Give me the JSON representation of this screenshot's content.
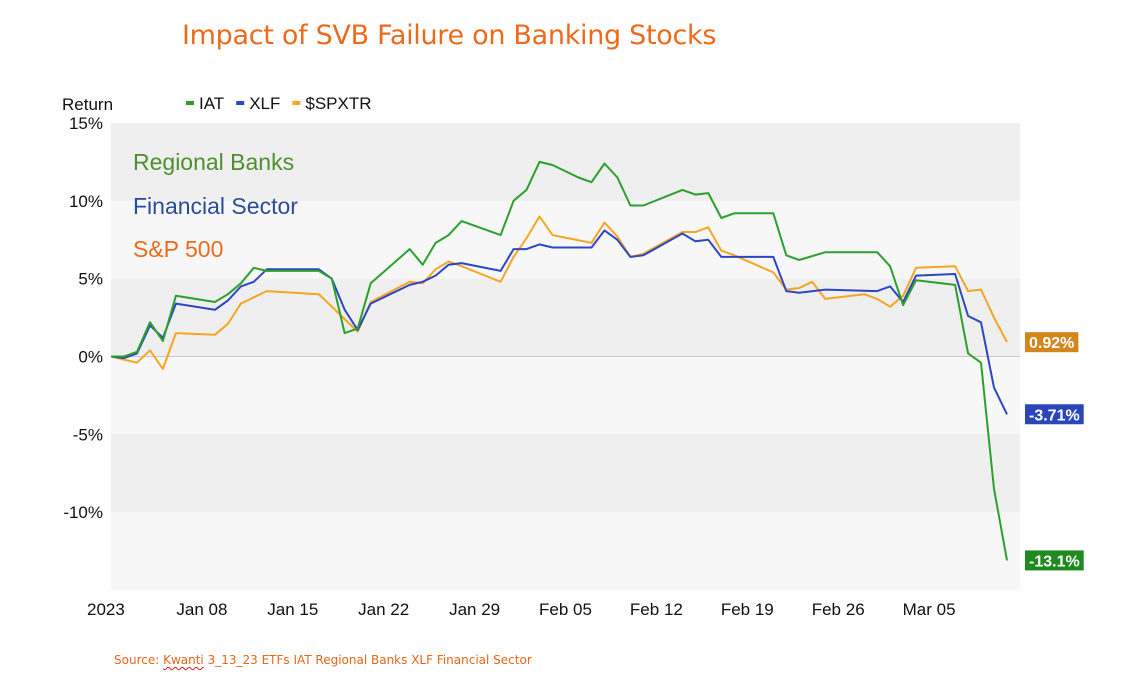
{
  "title": "Impact of SVB Failure on Banking Stocks",
  "source": {
    "prefix": "Source: ",
    "link": "Kwanti",
    "rest": " 3_13_23 ETFs IAT Regional Banks XLF Financial Sector"
  },
  "chart_data": {
    "type": "line",
    "ylabel": "Return",
    "ylim": [
      -15,
      15
    ],
    "yticks": [
      15,
      10,
      5,
      0,
      -5,
      -10
    ],
    "ytick_labels": [
      "15%",
      "10%",
      "5%",
      "0%",
      "-5%",
      "-10%"
    ],
    "xlim": [
      "2023-01-01",
      "2023-03-12"
    ],
    "xtick_labels": [
      {
        "date": "2023-01-01",
        "label": "2023"
      },
      {
        "date": "2023-01-08",
        "label": "Jan 08"
      },
      {
        "date": "2023-01-15",
        "label": "Jan 15"
      },
      {
        "date": "2023-01-22",
        "label": "Jan 22"
      },
      {
        "date": "2023-01-29",
        "label": "Jan 29"
      },
      {
        "date": "2023-02-05",
        "label": "Feb 05"
      },
      {
        "date": "2023-02-12",
        "label": "Feb 12"
      },
      {
        "date": "2023-02-19",
        "label": "Feb 19"
      },
      {
        "date": "2023-02-26",
        "label": "Feb 26"
      },
      {
        "date": "2023-03-05",
        "label": "Mar 05"
      }
    ],
    "legend_position": "top-left",
    "legend": [
      "IAT",
      "XLF",
      "$SPXTR"
    ],
    "annotations": [
      {
        "text": "Regional Banks",
        "color": "#4f8f2f"
      },
      {
        "text": "Financial Sector",
        "color": "#2a4a9a"
      },
      {
        "text": "S&P 500",
        "color": "#ec6a1c"
      }
    ],
    "series": [
      {
        "name": "IAT",
        "color": "#2ca02c",
        "end_label": "-13.1%",
        "end_label_color": "#1f8a1f",
        "points": [
          [
            "2023-01-01",
            0.0
          ],
          [
            "2023-01-02",
            0.0
          ],
          [
            "2023-01-03",
            0.3
          ],
          [
            "2023-01-04",
            2.2
          ],
          [
            "2023-01-05",
            1.0
          ],
          [
            "2023-01-06",
            3.9
          ],
          [
            "2023-01-09",
            3.5
          ],
          [
            "2023-01-10",
            4.0
          ],
          [
            "2023-01-11",
            4.7
          ],
          [
            "2023-01-12",
            5.7
          ],
          [
            "2023-01-13",
            5.5
          ],
          [
            "2023-01-17",
            5.5
          ],
          [
            "2023-01-18",
            5.0
          ],
          [
            "2023-01-19",
            1.5
          ],
          [
            "2023-01-20",
            1.8
          ],
          [
            "2023-01-21",
            4.7
          ],
          [
            "2023-01-24",
            6.9
          ],
          [
            "2023-01-25",
            5.9
          ],
          [
            "2023-01-26",
            7.3
          ],
          [
            "2023-01-27",
            7.8
          ],
          [
            "2023-01-28",
            8.7
          ],
          [
            "2023-01-31",
            7.8
          ],
          [
            "2023-02-01",
            10.0
          ],
          [
            "2023-02-02",
            10.7
          ],
          [
            "2023-02-03",
            12.5
          ],
          [
            "2023-02-04",
            12.3
          ],
          [
            "2023-02-06",
            11.5
          ],
          [
            "2023-02-07",
            11.2
          ],
          [
            "2023-02-08",
            12.4
          ],
          [
            "2023-02-09",
            11.5
          ],
          [
            "2023-02-10",
            9.7
          ],
          [
            "2023-02-11",
            9.7
          ],
          [
            "2023-02-14",
            10.7
          ],
          [
            "2023-02-15",
            10.4
          ],
          [
            "2023-02-16",
            10.5
          ],
          [
            "2023-02-17",
            8.9
          ],
          [
            "2023-02-18",
            9.2
          ],
          [
            "2023-02-21",
            9.2
          ],
          [
            "2023-02-22",
            6.5
          ],
          [
            "2023-02-23",
            6.2
          ],
          [
            "2023-02-25",
            6.7
          ],
          [
            "2023-02-27",
            6.7
          ],
          [
            "2023-03-01",
            6.7
          ],
          [
            "2023-03-02",
            5.8
          ],
          [
            "2023-03-03",
            3.3
          ],
          [
            "2023-03-04",
            4.9
          ],
          [
            "2023-03-07",
            4.6
          ],
          [
            "2023-03-08",
            0.2
          ],
          [
            "2023-03-09",
            -0.4
          ],
          [
            "2023-03-10",
            -8.5
          ],
          [
            "2023-03-11",
            -13.1
          ]
        ]
      },
      {
        "name": "XLF",
        "color": "#2d46c4",
        "end_label": "-3.71%",
        "end_label_color": "#2a46b8",
        "points": [
          [
            "2023-01-01",
            0.0
          ],
          [
            "2023-01-02",
            -0.1
          ],
          [
            "2023-01-03",
            0.2
          ],
          [
            "2023-01-04",
            2.0
          ],
          [
            "2023-01-05",
            1.2
          ],
          [
            "2023-01-06",
            3.4
          ],
          [
            "2023-01-09",
            3.0
          ],
          [
            "2023-01-10",
            3.6
          ],
          [
            "2023-01-11",
            4.5
          ],
          [
            "2023-01-12",
            4.8
          ],
          [
            "2023-01-13",
            5.6
          ],
          [
            "2023-01-17",
            5.6
          ],
          [
            "2023-01-18",
            5.0
          ],
          [
            "2023-01-19",
            3.0
          ],
          [
            "2023-01-20",
            1.7
          ],
          [
            "2023-01-21",
            3.4
          ],
          [
            "2023-01-24",
            4.6
          ],
          [
            "2023-01-25",
            4.8
          ],
          [
            "2023-01-26",
            5.2
          ],
          [
            "2023-01-27",
            5.9
          ],
          [
            "2023-01-28",
            6.0
          ],
          [
            "2023-01-31",
            5.5
          ],
          [
            "2023-02-01",
            6.9
          ],
          [
            "2023-02-02",
            6.9
          ],
          [
            "2023-02-03",
            7.2
          ],
          [
            "2023-02-04",
            7.0
          ],
          [
            "2023-02-07",
            7.0
          ],
          [
            "2023-02-08",
            8.1
          ],
          [
            "2023-02-09",
            7.5
          ],
          [
            "2023-02-10",
            6.4
          ],
          [
            "2023-02-11",
            6.5
          ],
          [
            "2023-02-14",
            7.9
          ],
          [
            "2023-02-15",
            7.4
          ],
          [
            "2023-02-16",
            7.5
          ],
          [
            "2023-02-17",
            6.4
          ],
          [
            "2023-02-18",
            6.4
          ],
          [
            "2023-02-21",
            6.4
          ],
          [
            "2023-02-22",
            4.2
          ],
          [
            "2023-02-23",
            4.1
          ],
          [
            "2023-02-25",
            4.3
          ],
          [
            "2023-03-01",
            4.2
          ],
          [
            "2023-03-02",
            4.5
          ],
          [
            "2023-03-03",
            3.5
          ],
          [
            "2023-03-04",
            5.2
          ],
          [
            "2023-03-07",
            5.3
          ],
          [
            "2023-03-08",
            2.6
          ],
          [
            "2023-03-09",
            2.2
          ],
          [
            "2023-03-10",
            -2.0
          ],
          [
            "2023-03-11",
            -3.71
          ]
        ]
      },
      {
        "name": "$SPXTR",
        "color": "#f5a623",
        "end_label": "0.92%",
        "end_label_color": "#d3861c",
        "points": [
          [
            "2023-01-01",
            0.0
          ],
          [
            "2023-01-03",
            -0.4
          ],
          [
            "2023-01-04",
            0.4
          ],
          [
            "2023-01-05",
            -0.8
          ],
          [
            "2023-01-06",
            1.5
          ],
          [
            "2023-01-09",
            1.4
          ],
          [
            "2023-01-10",
            2.1
          ],
          [
            "2023-01-11",
            3.4
          ],
          [
            "2023-01-13",
            4.2
          ],
          [
            "2023-01-17",
            4.0
          ],
          [
            "2023-01-18",
            3.2
          ],
          [
            "2023-01-19",
            2.4
          ],
          [
            "2023-01-20",
            1.6
          ],
          [
            "2023-01-21",
            3.5
          ],
          [
            "2023-01-24",
            4.8
          ],
          [
            "2023-01-25",
            4.7
          ],
          [
            "2023-01-26",
            5.6
          ],
          [
            "2023-01-27",
            6.1
          ],
          [
            "2023-01-28",
            5.8
          ],
          [
            "2023-01-31",
            4.8
          ],
          [
            "2023-02-01",
            6.4
          ],
          [
            "2023-02-02",
            7.6
          ],
          [
            "2023-02-03",
            9.0
          ],
          [
            "2023-02-04",
            7.8
          ],
          [
            "2023-02-07",
            7.3
          ],
          [
            "2023-02-08",
            8.6
          ],
          [
            "2023-02-09",
            7.7
          ],
          [
            "2023-02-10",
            6.4
          ],
          [
            "2023-02-11",
            6.6
          ],
          [
            "2023-02-14",
            8.0
          ],
          [
            "2023-02-15",
            8.0
          ],
          [
            "2023-02-16",
            8.3
          ],
          [
            "2023-02-17",
            6.8
          ],
          [
            "2023-02-18",
            6.5
          ],
          [
            "2023-02-21",
            5.4
          ],
          [
            "2023-02-22",
            4.3
          ],
          [
            "2023-02-23",
            4.4
          ],
          [
            "2023-02-24",
            4.8
          ],
          [
            "2023-02-25",
            3.7
          ],
          [
            "2023-02-28",
            4.0
          ],
          [
            "2023-03-01",
            3.7
          ],
          [
            "2023-03-02",
            3.2
          ],
          [
            "2023-03-03",
            3.9
          ],
          [
            "2023-03-04",
            5.7
          ],
          [
            "2023-03-07",
            5.8
          ],
          [
            "2023-03-08",
            4.2
          ],
          [
            "2023-03-09",
            4.3
          ],
          [
            "2023-03-10",
            2.5
          ],
          [
            "2023-03-11",
            0.92
          ]
        ]
      }
    ]
  }
}
